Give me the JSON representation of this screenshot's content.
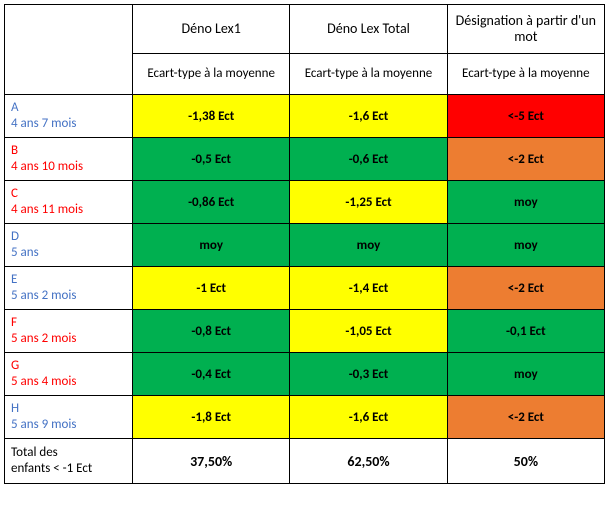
{
  "palette": {
    "yellow": "#ffff00",
    "green": "#00b050",
    "orange": "#ed7d31",
    "red": "#ff0000",
    "white": "#ffffff",
    "black": "#000000",
    "rowLabelBlue": "#4472c4",
    "rowLabelRed": "#ff0000"
  },
  "columns": {
    "c1": {
      "title": "Déno Lex1",
      "sub": "Ecart-type à la moyenne"
    },
    "c2": {
      "title": "Déno Lex Total",
      "sub": "Ecart-type à la moyenne"
    },
    "c3": {
      "title": "Désignation à partir d'un mot",
      "sub": "Ecart-type à la moyenne"
    }
  },
  "rows": [
    {
      "id": "A",
      "age": "4 ans 7 mois",
      "labelColor": "#4472c4",
      "c1": {
        "v": "-1,38 Ect",
        "bg": "#ffff00"
      },
      "c2": {
        "v": "-1,6 Ect",
        "bg": "#ffff00"
      },
      "c3": {
        "v": "<-5 Ect",
        "bg": "#ff0000"
      }
    },
    {
      "id": "B",
      "age": "4 ans 10 mois",
      "labelColor": "#ff0000",
      "c1": {
        "v": "-0,5 Ect",
        "bg": "#00b050"
      },
      "c2": {
        "v": "-0,6 Ect",
        "bg": "#00b050"
      },
      "c3": {
        "v": "<-2 Ect",
        "bg": "#ed7d31"
      }
    },
    {
      "id": "C",
      "age": "4 ans 11 mois",
      "labelColor": "#ff0000",
      "c1": {
        "v": "-0,86 Ect",
        "bg": "#00b050"
      },
      "c2": {
        "v": "-1,25 Ect",
        "bg": "#ffff00"
      },
      "c3": {
        "v": "moy",
        "bg": "#00b050"
      }
    },
    {
      "id": "D",
      "age": "5 ans",
      "labelColor": "#4472c4",
      "c1": {
        "v": "moy",
        "bg": "#00b050"
      },
      "c2": {
        "v": "moy",
        "bg": "#00b050"
      },
      "c3": {
        "v": "moy",
        "bg": "#00b050"
      }
    },
    {
      "id": "E",
      "age": "5 ans 2 mois",
      "labelColor": "#4472c4",
      "c1": {
        "v": "-1 Ect",
        "bg": "#ffff00"
      },
      "c2": {
        "v": "-1,4 Ect",
        "bg": "#ffff00"
      },
      "c3": {
        "v": "<-2 Ect",
        "bg": "#ed7d31"
      }
    },
    {
      "id": "F",
      "age": "5 ans 2 mois",
      "labelColor": "#ff0000",
      "c1": {
        "v": "-0,8 Ect",
        "bg": "#00b050"
      },
      "c2": {
        "v": "-1,05 Ect",
        "bg": "#ffff00"
      },
      "c3": {
        "v": "-0,1 Ect",
        "bg": "#00b050"
      }
    },
    {
      "id": "G",
      "age": "5 ans 4 mois",
      "labelColor": "#ff0000",
      "c1": {
        "v": "-0,4 Ect",
        "bg": "#00b050"
      },
      "c2": {
        "v": "-0,3 Ect",
        "bg": "#00b050"
      },
      "c3": {
        "v": "moy",
        "bg": "#00b050"
      }
    },
    {
      "id": "H",
      "age": "5 ans 9 mois",
      "labelColor": "#4472c4",
      "c1": {
        "v": "-1,8 Ect",
        "bg": "#ffff00"
      },
      "c2": {
        "v": "-1,6 Ect",
        "bg": "#ffff00"
      },
      "c3": {
        "v": "<-2 Ect",
        "bg": "#ed7d31"
      }
    }
  ],
  "totals": {
    "label_l1": "Total des",
    "label_l2": "enfants < -1 Ect",
    "c1": "37,50%",
    "c2": "62,50%",
    "c3": "50%"
  }
}
